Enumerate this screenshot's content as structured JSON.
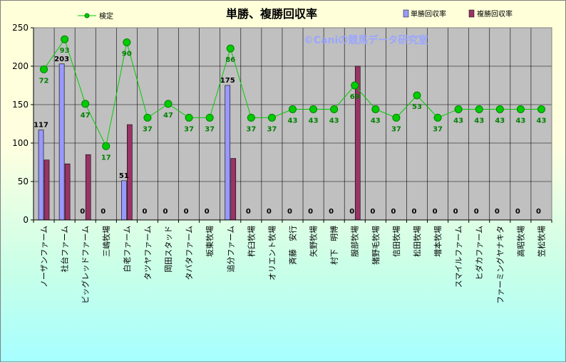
{
  "chart_data": {
    "type": "bar",
    "title": "単勝、複勝回収率",
    "watermark": "©Caniの競馬データ研究室",
    "ylim": [
      0,
      250
    ],
    "yticks": [
      0,
      50,
      100,
      150,
      200,
      250
    ],
    "grid": true,
    "legend_placement": "top",
    "categories": [
      "ノーザンファーム",
      "社台ファーム",
      "ビッグレッドファーム",
      "三嶋牧場",
      "白老ファーム",
      "タツヤファーム",
      "岡田スタッド",
      "タバタファーム",
      "坂東牧場",
      "追分ファーム",
      "杵臼牧場",
      "オリエント牧場",
      "斉藤　安行",
      "矢野牧場",
      "村下　明博",
      "服部牧場",
      "猪野毛牧場",
      "信田牧場",
      "松田牧場",
      "増本牧場",
      "スマイルファーム",
      "ヒダカファーム",
      "ファーミングヤナキタ",
      "高昭牧場",
      "笠松牧場"
    ],
    "series": [
      {
        "name": "単勝回収率",
        "kind": "bar",
        "color": "#9999ff",
        "values": [
          117,
          203,
          0,
          0,
          51,
          0,
          0,
          0,
          0,
          175,
          0,
          0,
          0,
          0,
          0,
          0,
          0,
          0,
          0,
          0,
          0,
          0,
          0,
          0,
          0
        ],
        "labels": [
          "117",
          "203",
          "0",
          "0",
          "51",
          "0",
          "0",
          "0",
          "0",
          "175",
          "0",
          "0",
          "0",
          "0",
          "0",
          "0",
          "0",
          "0",
          "0",
          "0",
          "0",
          "0",
          "0",
          "0",
          "0"
        ]
      },
      {
        "name": "複勝回収率",
        "kind": "bar",
        "color": "#993366",
        "values": [
          78,
          73,
          85,
          0,
          124,
          0,
          0,
          0,
          0,
          80,
          0,
          0,
          0,
          0,
          0,
          200,
          0,
          0,
          0,
          0,
          0,
          0,
          0,
          0,
          0
        ]
      },
      {
        "name": "検定",
        "kind": "line",
        "color": "#00cc00",
        "label_color": "#008000",
        "values": [
          196,
          235,
          151,
          96,
          231,
          133,
          151,
          133,
          133,
          223,
          133,
          133,
          144,
          144,
          144,
          175,
          144,
          133,
          162,
          133,
          144,
          144,
          144,
          144,
          144
        ],
        "labels": [
          "72",
          "93",
          "47",
          "17",
          "90",
          "37",
          "47",
          "37",
          "37",
          "86",
          "37",
          "37",
          "43",
          "43",
          "43",
          "69",
          "43",
          "37",
          "53",
          "37",
          "43",
          "43",
          "43",
          "43",
          "43"
        ]
      }
    ]
  }
}
